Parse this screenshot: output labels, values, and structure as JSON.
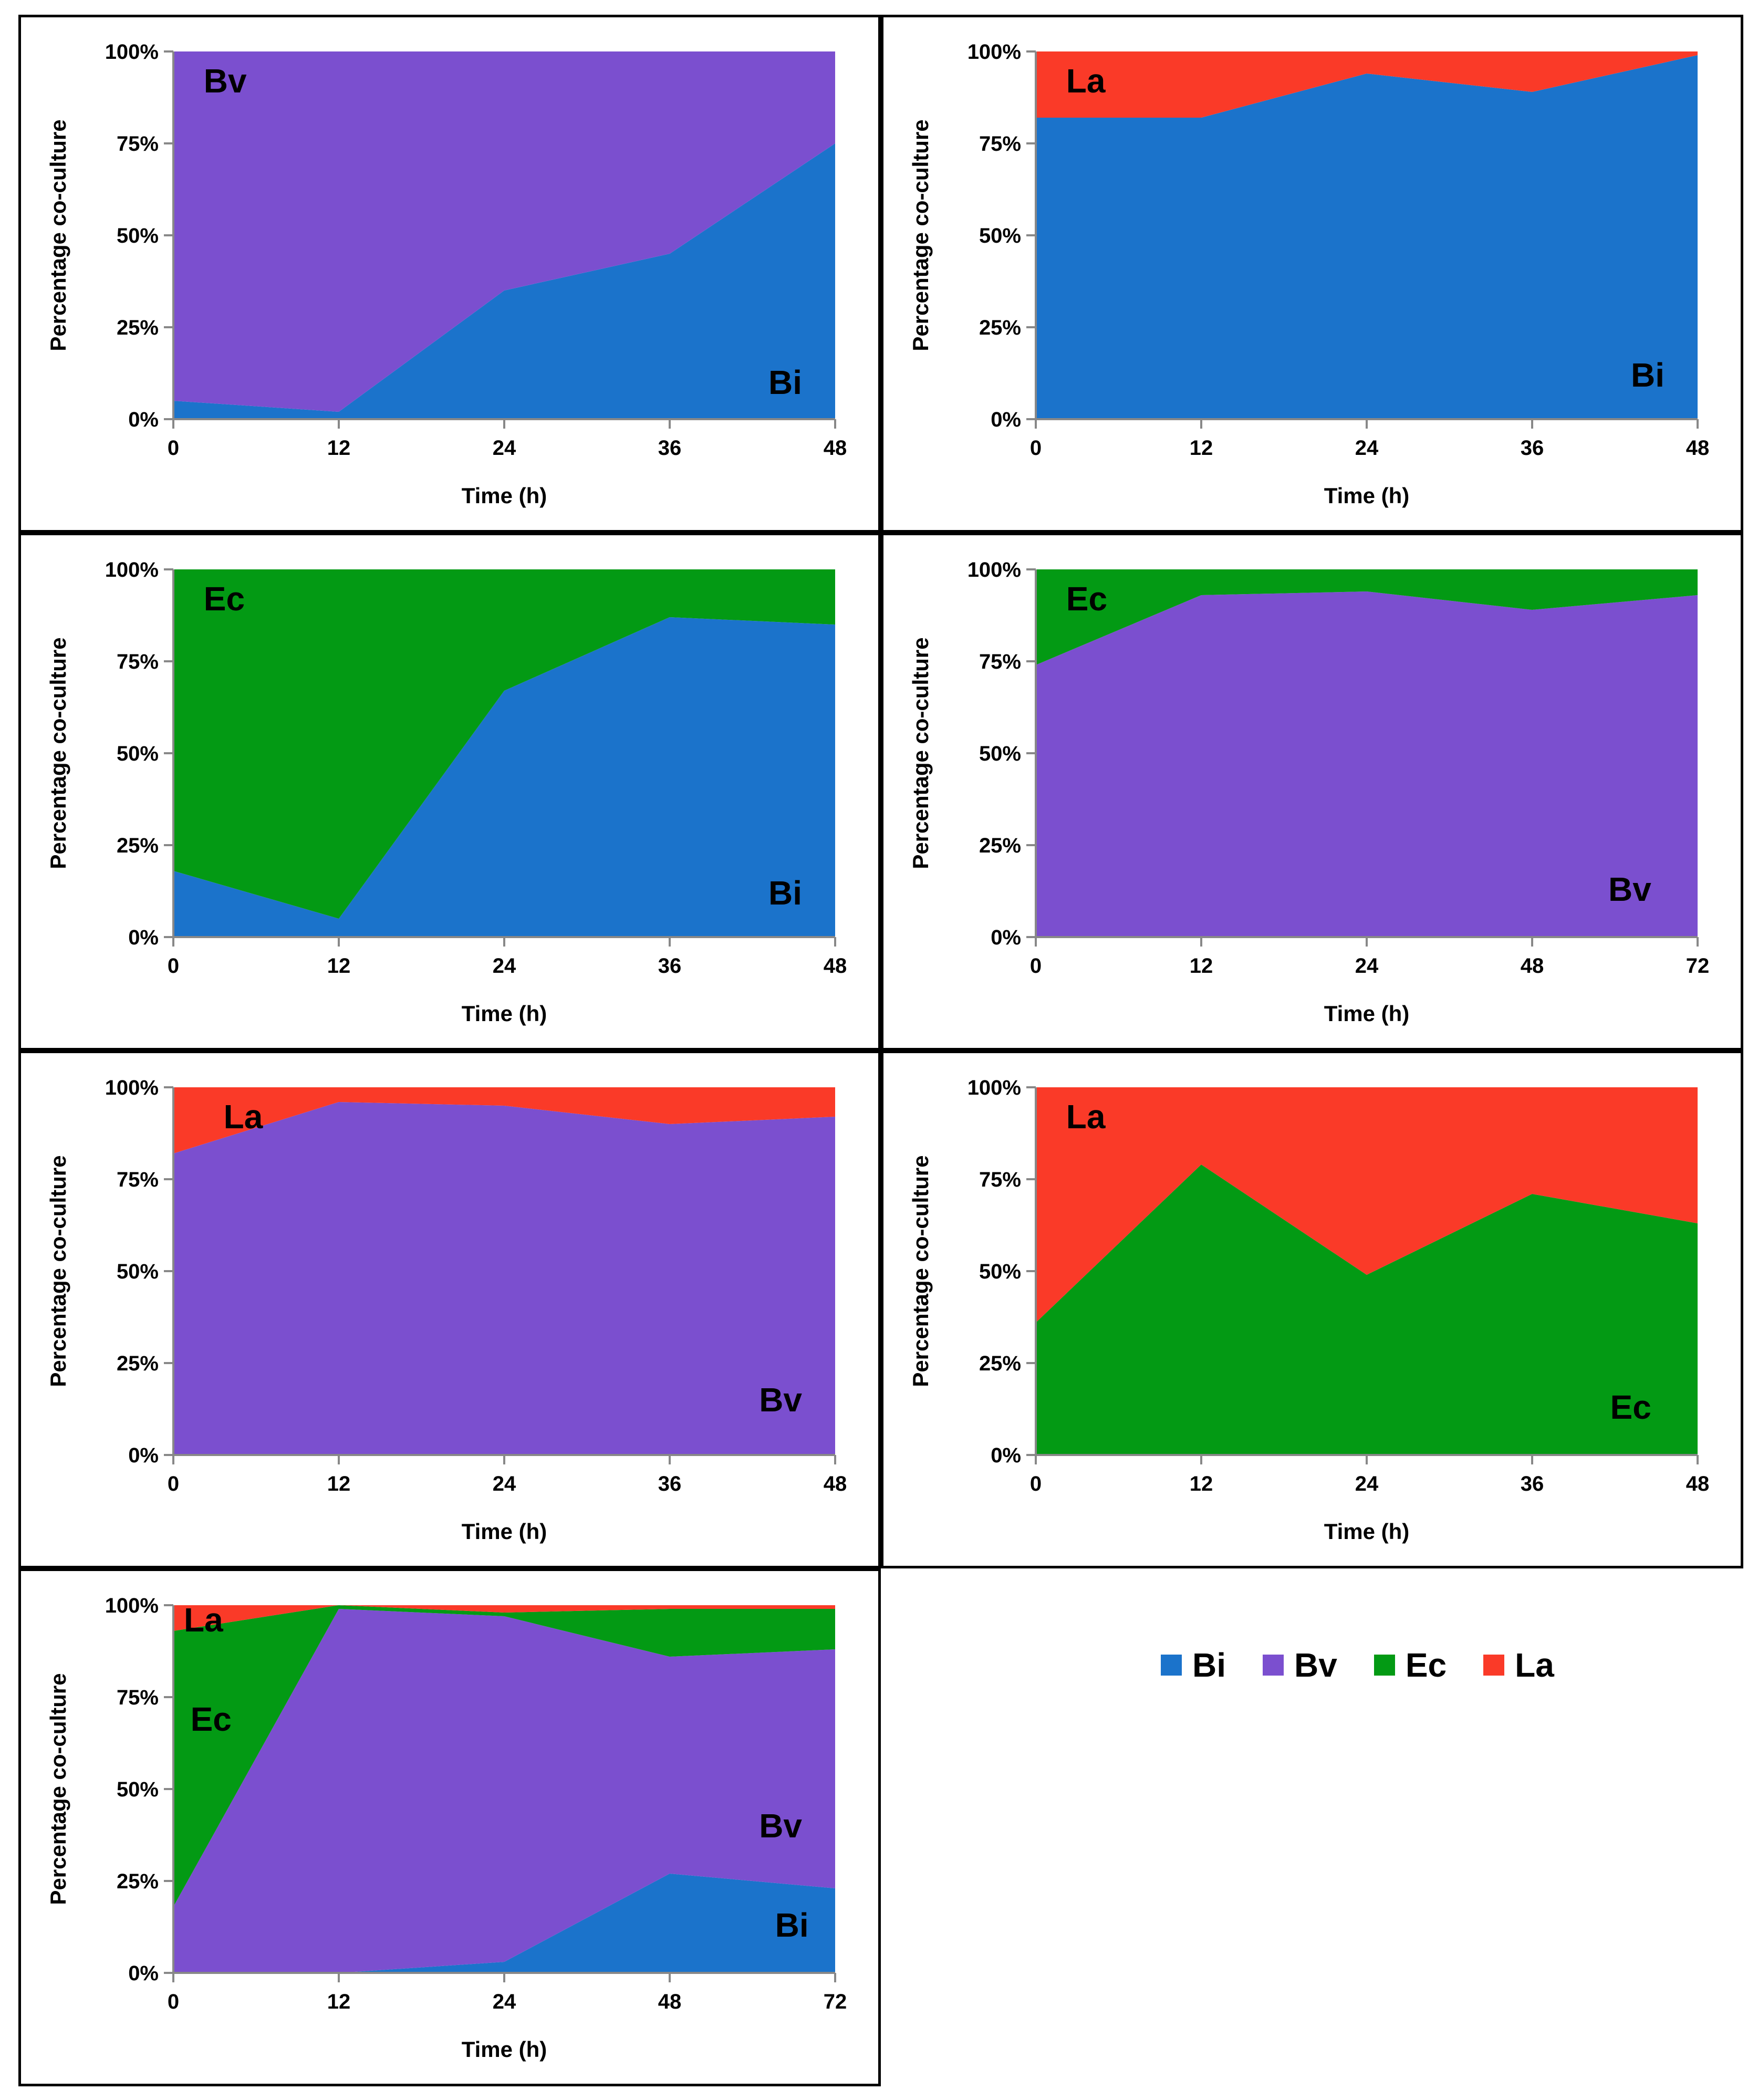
{
  "colors": {
    "Bi": "#1b73cb",
    "Bv": "#7b4fcf",
    "Ec": "#039a14",
    "La": "#fa3a28"
  },
  "legend": [
    {
      "key": "Bi",
      "label": "Bi"
    },
    {
      "key": "Bv",
      "label": "Bv"
    },
    {
      "key": "Ec",
      "label": "Ec"
    },
    {
      "key": "La",
      "label": "La"
    }
  ],
  "chart_data": [
    {
      "type": "area",
      "stacked": true,
      "title": "",
      "xlabel": "Time (h)",
      "ylabel": "Percentage co-culture",
      "x": [
        0,
        12,
        24,
        36,
        48
      ],
      "ylim": [
        0,
        100
      ],
      "yticks": [
        "0%",
        "25%",
        "50%",
        "75%",
        "100%"
      ],
      "series": [
        {
          "name": "Bi",
          "key": "Bi",
          "values": [
            5,
            2,
            35,
            45,
            75
          ]
        },
        {
          "name": "Bv",
          "key": "Bv",
          "values": [
            95,
            98,
            65,
            55,
            25
          ]
        }
      ],
      "annotations": [
        {
          "text": "Bv",
          "key": "Bv"
        },
        {
          "text": "Bi",
          "key": "Bi"
        }
      ]
    },
    {
      "type": "area",
      "stacked": true,
      "title": "",
      "xlabel": "Time (h)",
      "ylabel": "Percentage co-culture",
      "x": [
        0,
        12,
        24,
        36,
        48
      ],
      "ylim": [
        0,
        100
      ],
      "yticks": [
        "0%",
        "25%",
        "50%",
        "75%",
        "100%"
      ],
      "series": [
        {
          "name": "Bi",
          "key": "Bi",
          "values": [
            82,
            82,
            94,
            89,
            99
          ]
        },
        {
          "name": "La",
          "key": "La",
          "values": [
            18,
            18,
            6,
            11,
            1
          ]
        }
      ],
      "annotations": [
        {
          "text": "La",
          "key": "La"
        },
        {
          "text": "Bi",
          "key": "Bi"
        }
      ]
    },
    {
      "type": "area",
      "stacked": true,
      "title": "",
      "xlabel": "Time (h)",
      "ylabel": "Percentage co-culture",
      "x": [
        0,
        12,
        24,
        36,
        48
      ],
      "ylim": [
        0,
        100
      ],
      "yticks": [
        "0%",
        "25%",
        "50%",
        "75%",
        "100%"
      ],
      "series": [
        {
          "name": "Bi",
          "key": "Bi",
          "values": [
            18,
            5,
            67,
            87,
            85
          ]
        },
        {
          "name": "Ec",
          "key": "Ec",
          "values": [
            82,
            95,
            33,
            13,
            15
          ]
        }
      ],
      "annotations": [
        {
          "text": "Ec",
          "key": "Ec"
        },
        {
          "text": "Bi",
          "key": "Bi"
        }
      ]
    },
    {
      "type": "area",
      "stacked": true,
      "title": "",
      "xlabel": "Time (h)",
      "ylabel": "Percentage co-culture",
      "x": [
        0,
        12,
        24,
        48,
        72
      ],
      "ylim": [
        0,
        100
      ],
      "yticks": [
        "0%",
        "25%",
        "50%",
        "75%",
        "100%"
      ],
      "series": [
        {
          "name": "Bv",
          "key": "Bv",
          "values": [
            74,
            93,
            94,
            89,
            93
          ]
        },
        {
          "name": "Ec",
          "key": "Ec",
          "values": [
            26,
            7,
            6,
            11,
            7
          ]
        }
      ],
      "annotations": [
        {
          "text": "Ec",
          "key": "Ec"
        },
        {
          "text": "Bv",
          "key": "Bv"
        }
      ]
    },
    {
      "type": "area",
      "stacked": true,
      "title": "",
      "xlabel": "Time (h)",
      "ylabel": "Percentage co-culture",
      "x": [
        0,
        12,
        24,
        36,
        48
      ],
      "ylim": [
        0,
        100
      ],
      "yticks": [
        "0%",
        "25%",
        "50%",
        "75%",
        "100%"
      ],
      "series": [
        {
          "name": "Bv",
          "key": "Bv",
          "values": [
            82,
            96,
            95,
            90,
            92
          ]
        },
        {
          "name": "La",
          "key": "La",
          "values": [
            18,
            4,
            5,
            10,
            8
          ]
        }
      ],
      "annotations": [
        {
          "text": "La",
          "key": "La"
        },
        {
          "text": "Bv",
          "key": "Bv"
        }
      ]
    },
    {
      "type": "area",
      "stacked": true,
      "title": "",
      "xlabel": "Time (h)",
      "ylabel": "Percentage co-culture",
      "x": [
        0,
        12,
        24,
        36,
        48
      ],
      "ylim": [
        0,
        100
      ],
      "yticks": [
        "0%",
        "25%",
        "50%",
        "75%",
        "100%"
      ],
      "series": [
        {
          "name": "Ec",
          "key": "Ec",
          "values": [
            36,
            79,
            49,
            71,
            63
          ]
        },
        {
          "name": "La",
          "key": "La",
          "values": [
            64,
            21,
            51,
            29,
            37
          ]
        }
      ],
      "annotations": [
        {
          "text": "La",
          "key": "La"
        },
        {
          "text": "Ec",
          "key": "Ec"
        }
      ]
    },
    {
      "type": "area",
      "stacked": true,
      "title": "",
      "xlabel": "Time (h)",
      "ylabel": "Percentage co-culture",
      "x": [
        0,
        12,
        24,
        48,
        72
      ],
      "ylim": [
        0,
        100
      ],
      "yticks": [
        "0%",
        "25%",
        "50%",
        "75%",
        "100%"
      ],
      "series": [
        {
          "name": "Bi",
          "key": "Bi",
          "values": [
            0,
            0,
            3,
            27,
            23
          ]
        },
        {
          "name": "Bv",
          "key": "Bv",
          "values": [
            18,
            99,
            94,
            59,
            65
          ]
        },
        {
          "name": "Ec",
          "key": "Ec",
          "values": [
            75,
            1,
            1,
            13,
            11
          ]
        },
        {
          "name": "La",
          "key": "La",
          "values": [
            7,
            0,
            2,
            1,
            1
          ]
        }
      ],
      "annotations": [
        {
          "text": "La",
          "key": "La"
        },
        {
          "text": "Ec",
          "key": "Ec"
        },
        {
          "text": "Bv",
          "key": "Bv"
        },
        {
          "text": "Bi",
          "key": "Bi"
        }
      ]
    }
  ]
}
